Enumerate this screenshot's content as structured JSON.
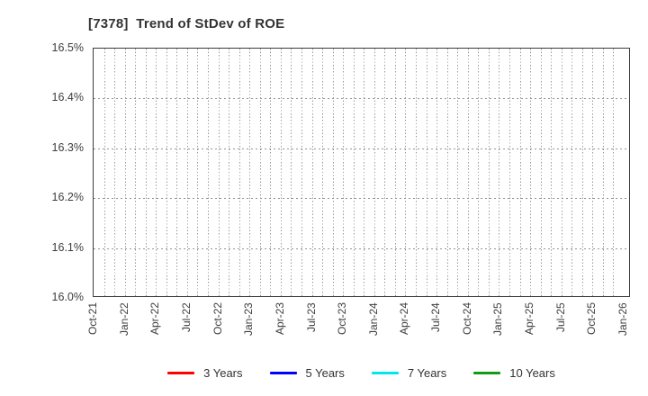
{
  "window": {
    "background": "#ffffff"
  },
  "header": {
    "title": "[7378]  Trend of StDev of ROE"
  },
  "colors": {
    "title_text": "#333333",
    "tick_text": "#3d3d3d",
    "axis_border": "#3c3c3c",
    "grid": "#999999",
    "background": "#ffffff"
  },
  "chart_data": {
    "type": "line",
    "title": "[7378]  Trend of StDev of ROE",
    "xlabel": "",
    "ylabel": "",
    "ylim": [
      16.0,
      16.5
    ],
    "ytick_labels": [
      "16.5%",
      "16.4%",
      "16.3%",
      "16.2%",
      "16.1%",
      "16.0%"
    ],
    "xtick_labels": [
      "Oct-21",
      "Jan-22",
      "Apr-22",
      "Jul-22",
      "Oct-22",
      "Jan-23",
      "Apr-23",
      "Jul-23",
      "Oct-23",
      "Jan-24",
      "Apr-24",
      "Jul-24",
      "Oct-24",
      "Jan-25",
      "Apr-25",
      "Jul-25",
      "Oct-25",
      "Jan-26"
    ],
    "x_minor_divisions": 51,
    "x_months_per_label": 3,
    "grid": {
      "style": "dotted",
      "color": "#999999",
      "vertical": "monthly",
      "horizontal": "every 0.1%"
    },
    "legend_position": "bottom",
    "series": [
      {
        "name": "3 Years",
        "color": "#ff0000",
        "values": []
      },
      {
        "name": "5 Years",
        "color": "#0000ff",
        "values": []
      },
      {
        "name": "7 Years",
        "color": "#00e5ee",
        "values": []
      },
      {
        "name": "10 Years",
        "color": "#109c10",
        "values": []
      }
    ],
    "plot_note": "no data lines visible within axis range"
  }
}
